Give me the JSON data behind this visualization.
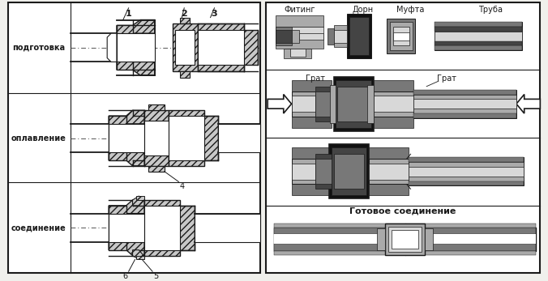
{
  "bg_color": "#f0f0ec",
  "line_color": "#1a1a1a",
  "hatch_fc": "#c8c8c8",
  "labels_left": [
    "подготовка",
    "оплавление",
    "соединение"
  ],
  "num1": "1",
  "num2": "2",
  "num3": "3",
  "num4": "4",
  "num5": "5",
  "num6": "6",
  "label_fitting": "Фитинг",
  "label_dorn": "Дорн",
  "label_mufta": "Муфта",
  "label_truba": "Труба",
  "label_grat": "Грат",
  "label_ready": "Готовое соединение",
  "c_white": "#ffffff",
  "c_light": "#d8d8d8",
  "c_mid": "#aaaaaa",
  "c_dark": "#787878",
  "c_vdark": "#444444",
  "c_black": "#111111"
}
